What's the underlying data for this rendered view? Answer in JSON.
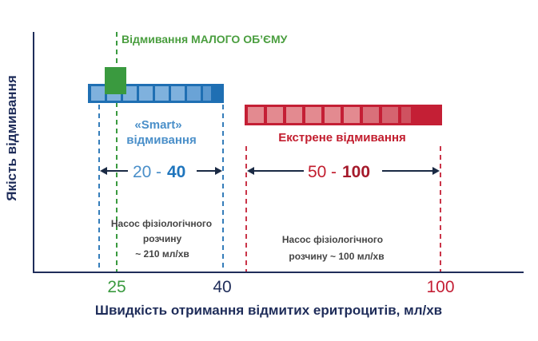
{
  "y_axis_label": "Якість відмивання",
  "x_axis_label": "Швидкість отримання відмитих еритроцитів, мл/хв",
  "x_ticks": [
    "25",
    "40",
    "100"
  ],
  "low_volume_label": "Відмивання МАЛОГО ОБ’ЄМУ",
  "smart": {
    "title_line1": "«Smart»",
    "title_line2": "відмивання",
    "range_low": "20",
    "range_dash": "-",
    "range_high": "40",
    "pump_line1": "Насос  фізіологічного",
    "pump_line2": "розчину",
    "pump_line3": "~ 210 мл/хв"
  },
  "emergency": {
    "title": "Екстрене відмивання",
    "range_low": "50",
    "range_dash": "-",
    "range_high": "100",
    "pump_line1": "Насос фізіологічного",
    "pump_line2": "розчину ~ 100  мл/хв"
  },
  "colors": {
    "blue_dark": "#1f6fb3",
    "blue_light": "#7fb1dd",
    "blue_text": "#4a8fc9",
    "blue_number": "#1f75bd",
    "red_dark": "#c41f35",
    "red_light": "#e38a90",
    "red_text": "#c21d2e",
    "green": "#3a9a3f",
    "green_text": "#4a9e3f",
    "navy": "#1f2d5a",
    "gray_text": "#444444"
  },
  "icons": {
    "range_arrow": "double-headed-arrow-icon",
    "low_volume_marker": "green-square-marker-icon"
  }
}
